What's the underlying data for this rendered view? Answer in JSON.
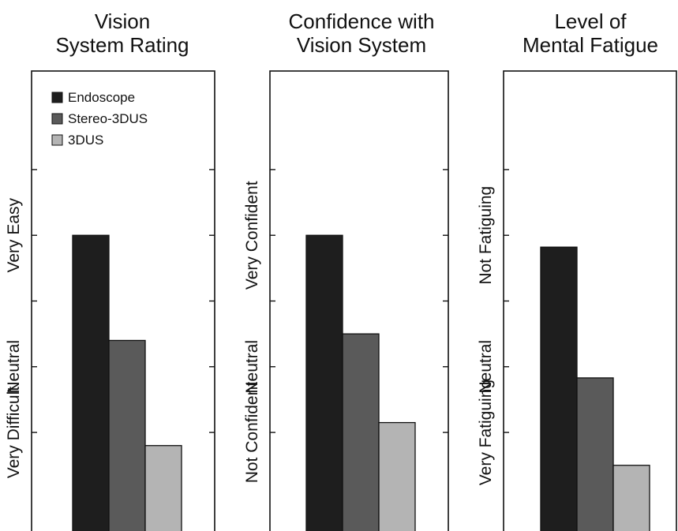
{
  "colors": {
    "Endoscope": "#1e1e1e",
    "Stereo-3DUS": "#5a5a5a",
    "3DUS": "#b4b4b4"
  },
  "legend": [
    "Endoscope",
    "Stereo-3DUS",
    "3DUS"
  ],
  "chart_data": [
    {
      "type": "bar",
      "title_lines": [
        "Vision",
        "System Rating"
      ],
      "ylabels": [
        "Very Difficult",
        "Neutral",
        "Very Easy"
      ],
      "ylim": [
        -2.5,
        4.5
      ],
      "yticks": [
        -1,
        0,
        1,
        2,
        3
      ],
      "legend_placement": "top-left",
      "series": [
        {
          "name": "Endoscope",
          "value": 2.0
        },
        {
          "name": "Stereo-3DUS",
          "value": 0.4
        },
        {
          "name": "3DUS",
          "value": -1.2
        }
      ]
    },
    {
      "type": "bar",
      "title_lines": [
        "Confidence with",
        "Vision System"
      ],
      "ylabels": [
        "Not Confident",
        "Neutral",
        "Very Confident"
      ],
      "ylim": [
        -2.5,
        4.5
      ],
      "yticks": [
        -1,
        0,
        1,
        2,
        3
      ],
      "series": [
        {
          "name": "Endoscope",
          "value": 2.0
        },
        {
          "name": "Stereo-3DUS",
          "value": 0.5
        },
        {
          "name": "3DUS",
          "value": -0.85
        }
      ]
    },
    {
      "type": "bar",
      "title_lines": [
        "Level of",
        "Mental Fatigue"
      ],
      "ylabels": [
        "Very Fatiguing",
        "Neutral",
        "Not Fatiguing"
      ],
      "ylim": [
        -2.5,
        4.5
      ],
      "yticks": [
        -1,
        0,
        1,
        2,
        3
      ],
      "series": [
        {
          "name": "Endoscope",
          "value": 1.82
        },
        {
          "name": "Stereo-3DUS",
          "value": -0.17
        },
        {
          "name": "3DUS",
          "value": -1.5
        }
      ]
    }
  ]
}
